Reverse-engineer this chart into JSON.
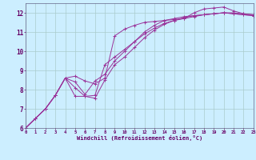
{
  "background_color": "#cceeff",
  "grid_color": "#aacccc",
  "line_color": "#993399",
  "marker": "+",
  "xlabel": "Windchill (Refroidissement éolien,°C)",
  "tick_color": "#660066",
  "xlim": [
    0,
    23
  ],
  "ylim": [
    6,
    12.5
  ],
  "xticks": [
    0,
    1,
    2,
    3,
    4,
    5,
    6,
    7,
    8,
    9,
    10,
    11,
    12,
    13,
    14,
    15,
    16,
    17,
    18,
    19,
    20,
    21,
    22,
    23
  ],
  "yticks": [
    6,
    7,
    8,
    9,
    10,
    11,
    12
  ],
  "curves": [
    [
      6.0,
      6.5,
      7.0,
      7.7,
      8.6,
      7.65,
      7.65,
      7.7,
      9.3,
      9.7,
      10.1,
      10.5,
      10.9,
      11.2,
      11.45,
      11.6,
      11.7,
      11.8,
      11.9,
      11.95,
      12.0,
      12.0,
      11.95,
      11.9
    ],
    [
      6.0,
      6.5,
      7.0,
      7.7,
      8.6,
      8.7,
      8.45,
      8.3,
      8.6,
      10.8,
      11.15,
      11.35,
      11.5,
      11.55,
      11.6,
      11.65,
      11.7,
      12.0,
      12.2,
      12.25,
      12.3,
      12.1,
      11.95,
      11.9
    ],
    [
      6.0,
      6.5,
      7.0,
      7.7,
      8.6,
      8.4,
      7.75,
      8.45,
      8.8,
      9.5,
      10.0,
      10.5,
      11.0,
      11.35,
      11.6,
      11.7,
      11.8,
      11.85,
      11.9,
      11.95,
      12.0,
      11.95,
      11.9,
      11.85
    ],
    [
      6.0,
      6.5,
      7.0,
      7.7,
      8.6,
      8.1,
      7.65,
      7.55,
      8.5,
      9.3,
      9.7,
      10.2,
      10.7,
      11.1,
      11.4,
      11.6,
      11.75,
      11.85,
      11.9,
      11.95,
      12.0,
      11.95,
      11.9,
      11.85
    ]
  ]
}
